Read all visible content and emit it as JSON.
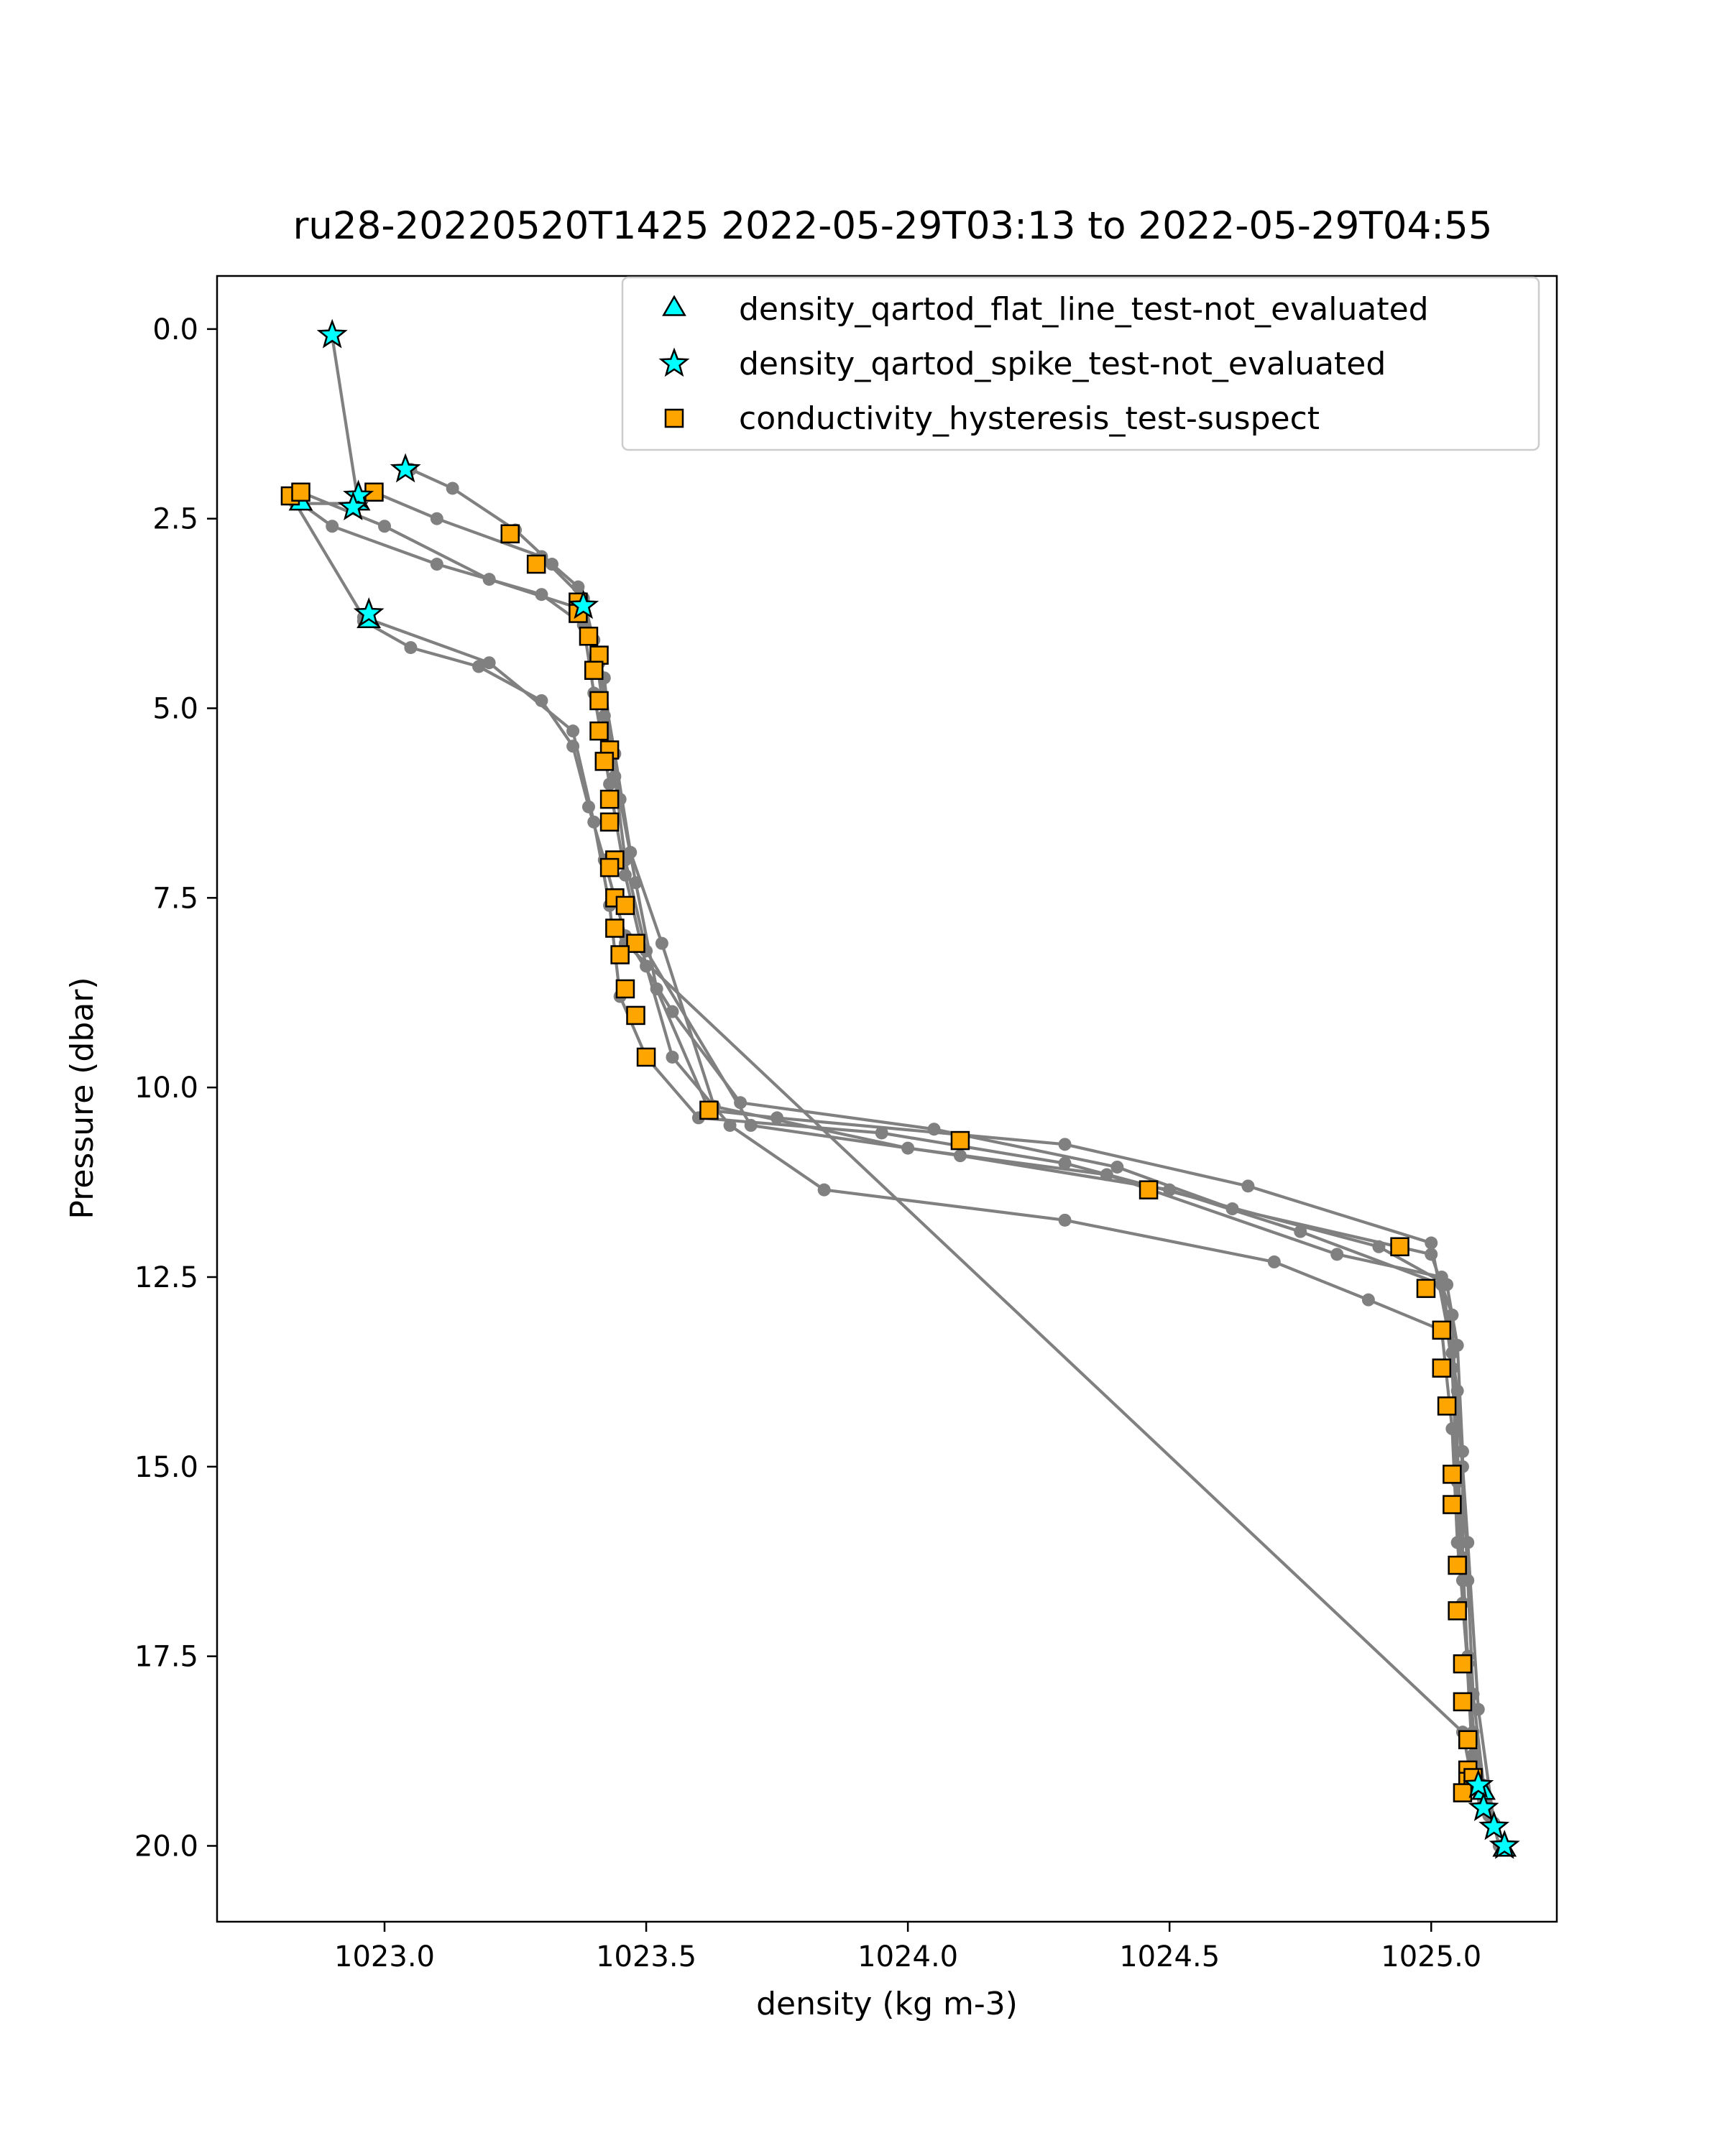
{
  "chart_data": {
    "type": "scatter",
    "title": "ru28-20220520T1425 2022-05-29T03:13 to 2022-05-29T04:55",
    "xlabel": "density (kg m-3)",
    "ylabel": "Pressure (dbar)",
    "xlim": [
      1022.68,
      1025.24
    ],
    "ylim": [
      21.0,
      -0.7
    ],
    "y_inverted": true,
    "xticks": [
      1023.0,
      1023.5,
      1024.0,
      1024.5,
      1025.0
    ],
    "xtick_labels": [
      "1023.0",
      "1023.5",
      "1024.0",
      "1024.5",
      "1025.0"
    ],
    "yticks": [
      0.0,
      2.5,
      5.0,
      7.5,
      10.0,
      12.5,
      15.0,
      17.5,
      20.0
    ],
    "ytick_labels": [
      "0.0",
      "2.5",
      "5.0",
      "7.5",
      "10.0",
      "12.5",
      "15.0",
      "17.5",
      "20.0"
    ],
    "grid": false,
    "legend_position": "upper-right",
    "colors": {
      "profile": "#808080",
      "flat_line": "#00ffff",
      "spike": "#00ffff",
      "hysteresis": "#ffa500",
      "marker_edge": "#000000"
    },
    "legend": [
      {
        "label": "density_qartod_flat_line_test-not_evaluated",
        "marker": "triangle"
      },
      {
        "label": "density_qartod_spike_test-not_evaluated",
        "marker": "star"
      },
      {
        "label": "conductivity_hysteresis_test-suspect",
        "marker": "square"
      }
    ],
    "profile_lines": [
      {
        "name": "profile-1",
        "x": [
          1022.9,
          1022.95,
          1022.83,
          1022.96,
          1023.2,
          1023.36,
          1023.4,
          1023.43,
          1023.45,
          1023.5,
          1023.6,
          1023.95,
          1024.3,
          1024.9,
          1025.03,
          1025.05,
          1025.06,
          1025.06,
          1025.07,
          1025.08,
          1025.1
        ],
        "y": [
          0.1,
          2.3,
          2.3,
          3.8,
          4.4,
          5.3,
          6.5,
          7.6,
          8.8,
          9.6,
          10.4,
          10.6,
          11.0,
          12.1,
          12.6,
          13.4,
          14.8,
          16.2,
          17.6,
          18.8,
          19.4
        ]
      },
      {
        "name": "profile-2",
        "x": [
          1023.05,
          1023.13,
          1023.25,
          1023.32,
          1023.37,
          1023.4,
          1023.42,
          1023.45,
          1023.48,
          1023.52,
          1023.62,
          1023.75,
          1024.3,
          1024.65,
          1025.0,
          1025.04,
          1025.06,
          1025.07,
          1025.08,
          1025.1,
          1025.13
        ],
        "y": [
          1.85,
          2.1,
          2.65,
          3.1,
          3.4,
          4.1,
          5.1,
          6.2,
          7.3,
          8.7,
          10.3,
          10.4,
          10.75,
          11.3,
          12.05,
          13.5,
          15.0,
          16.5,
          18.0,
          19.2,
          20.0
        ]
      },
      {
        "name": "profile-3",
        "x": [
          1022.84,
          1023.0,
          1023.2,
          1023.38,
          1023.42,
          1023.44,
          1023.46,
          1023.5,
          1023.7,
          1024.1,
          1024.5,
          1024.75,
          1025.02,
          1025.04,
          1025.05,
          1025.06,
          1025.08,
          1025.11
        ],
        "y": [
          2.15,
          2.6,
          3.3,
          3.7,
          4.6,
          5.9,
          7.0,
          8.2,
          10.5,
          10.9,
          11.35,
          11.9,
          12.6,
          13.7,
          15.2,
          16.8,
          18.5,
          19.6
        ]
      },
      {
        "name": "profile-4",
        "x": [
          1022.98,
          1023.1,
          1023.3,
          1023.38,
          1023.41,
          1023.44,
          1023.47,
          1023.53,
          1023.63,
          1024.0,
          1024.38,
          1024.82,
          1025.02,
          1025.05,
          1025.07,
          1025.09,
          1025.12
        ],
        "y": [
          2.15,
          2.5,
          3.0,
          3.55,
          4.4,
          5.6,
          6.9,
          8.1,
          10.25,
          10.8,
          11.15,
          12.2,
          12.5,
          14.0,
          16.0,
          18.2,
          19.7
        ]
      },
      {
        "name": "profile-5",
        "x": [
          1022.82,
          1022.9,
          1023.1,
          1023.3,
          1023.38,
          1023.4,
          1023.43,
          1023.46,
          1023.5,
          1023.55,
          1023.66,
          1023.84,
          1024.3,
          1024.7,
          1024.88,
          1025.02,
          1025.04,
          1025.05,
          1025.07,
          1025.09
        ],
        "y": [
          2.2,
          2.6,
          3.1,
          3.5,
          3.9,
          4.8,
          6.0,
          7.2,
          8.4,
          9.6,
          10.5,
          11.35,
          11.75,
          12.3,
          12.8,
          13.2,
          14.5,
          16.0,
          17.5,
          19.3
        ]
      },
      {
        "name": "profile-6",
        "x": [
          1022.96,
          1023.05,
          1023.18,
          1023.3,
          1023.36,
          1023.39,
          1023.42,
          1023.46,
          1023.55,
          1023.68,
          1024.05,
          1024.4,
          1024.62,
          1025.0,
          1025.04,
          1025.06,
          1025.08
        ],
        "y": [
          3.85,
          4.2,
          4.45,
          4.9,
          5.5,
          6.3,
          7.0,
          8.0,
          9.0,
          10.2,
          10.55,
          11.05,
          11.6,
          12.2,
          13.0,
          16.5,
          19.0
        ]
      },
      {
        "name": "profile-7",
        "x": [
          1023.46,
          1025.06,
          1025.08,
          1025.1
        ],
        "y": [
          8.1,
          18.5,
          19.2,
          19.5
        ]
      }
    ],
    "flat_line_not_evaluated": {
      "x": [
        1022.84,
        1022.95,
        1022.97,
        1025.1,
        1025.14
      ],
      "y": [
        2.3,
        2.3,
        3.85,
        19.3,
        20.05
      ]
    },
    "spike_not_evaluated": {
      "x": [
        1022.9,
        1023.04,
        1022.95,
        1022.94,
        1022.97,
        1025.09,
        1025.1,
        1025.12,
        1025.14,
        1023.38
      ],
      "y": [
        0.08,
        1.85,
        2.2,
        2.35,
        3.75,
        19.2,
        19.5,
        19.75,
        20.0,
        3.65
      ]
    },
    "hysteresis_suspect": {
      "x": [
        1022.82,
        1022.84,
        1022.98,
        1023.24,
        1023.29,
        1023.37,
        1023.37,
        1023.39,
        1023.41,
        1023.4,
        1023.41,
        1023.41,
        1023.43,
        1023.42,
        1023.43,
        1023.43,
        1023.44,
        1023.43,
        1023.44,
        1023.46,
        1023.44,
        1023.48,
        1023.45,
        1023.46,
        1023.48,
        1023.5,
        1023.62,
        1024.1,
        1024.46,
        1024.94,
        1024.99,
        1025.02,
        1025.02,
        1025.03,
        1025.04,
        1025.04,
        1025.05,
        1025.05,
        1025.06,
        1025.06,
        1025.07,
        1025.07,
        1025.07,
        1025.08,
        1025.06
      ],
      "y": [
        2.2,
        2.15,
        2.15,
        2.7,
        3.1,
        3.6,
        3.75,
        4.05,
        4.3,
        4.5,
        4.9,
        5.3,
        5.55,
        5.7,
        6.2,
        6.5,
        7.0,
        7.1,
        7.5,
        7.6,
        7.9,
        8.1,
        8.25,
        8.7,
        9.05,
        9.6,
        10.3,
        10.7,
        11.35,
        12.1,
        12.65,
        13.2,
        13.7,
        14.2,
        15.1,
        15.5,
        16.3,
        16.9,
        17.6,
        18.1,
        18.6,
        19.0,
        19.15,
        19.1,
        19.3
      ]
    }
  }
}
